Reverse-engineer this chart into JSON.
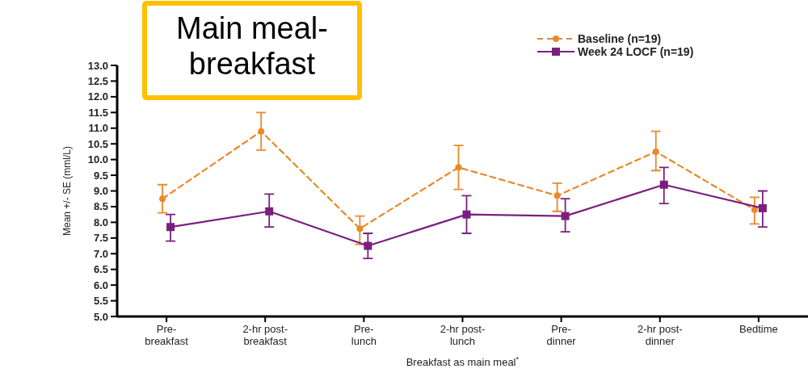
{
  "chart_data": {
    "type": "line",
    "xlabel": "Breakfast as main meal$^{*}$",
    "ylabel": "Mean +/- SE (mml/L)",
    "annotations": [
      "Main meal-\nbreakfast"
    ],
    "categories": [
      "Pre-\nbreakfast",
      "2-hr post-\nbreakfast",
      "Pre-\nlunch",
      "2-hr post-\nlunch",
      "Pre-\ndinner",
      "2-hr post-\ndinner",
      "Bedtime"
    ],
    "ylim": [
      5,
      13
    ],
    "yticks": [
      {
        "value": 5,
        "label": "5.0"
      },
      {
        "value": 5.5,
        "label": "5.5"
      },
      {
        "value": 6,
        "label": "6.0"
      },
      {
        "value": 6.5,
        "label": "6.5"
      },
      {
        "value": 7,
        "label": "7.0"
      },
      {
        "value": 7.5,
        "label": "7.5"
      },
      {
        "value": 8,
        "label": "8.0"
      },
      {
        "value": 8.5,
        "label": "8.5"
      },
      {
        "value": 9,
        "label": "9.0"
      },
      {
        "value": 9.5,
        "label": "9.5"
      },
      {
        "value": 10,
        "label": "10.0"
      },
      {
        "value": 10.5,
        "label": "10.5"
      },
      {
        "value": 11,
        "label": "11.0"
      },
      {
        "value": 11.5,
        "label": "11.5"
      },
      {
        "value": 12,
        "label": "12.0"
      },
      {
        "value": 12.5,
        "label": "12.5"
      },
      {
        "value": 13,
        "label": "13.0"
      }
    ],
    "grid": false,
    "legend": "top right",
    "series": [
      {
        "name": "Baseline (n=19)",
        "color": "#e8892b",
        "marker": "circle",
        "line_style": "dashed",
        "values": [
          8.75,
          10.9,
          7.8,
          9.75,
          8.85,
          10.25,
          8.4
        ],
        "errors": [
          [
            8.3,
            9.2
          ],
          [
            10.3,
            11.5
          ],
          [
            7.3,
            8.2
          ],
          [
            9.05,
            10.45
          ],
          [
            8.35,
            9.25
          ],
          [
            9.65,
            10.9
          ],
          [
            7.95,
            8.8
          ]
        ]
      },
      {
        "name": "Week 24 LOCF (n=19)",
        "color": "#7b1f7e",
        "marker": "square",
        "line_style": "solid",
        "values": [
          7.85,
          8.35,
          7.25,
          8.25,
          8.2,
          9.2,
          8.45
        ],
        "errors": [
          [
            7.4,
            8.25
          ],
          [
            7.85,
            8.9
          ],
          [
            6.85,
            7.65
          ],
          [
            7.65,
            8.85
          ],
          [
            7.7,
            8.75
          ],
          [
            8.6,
            9.75
          ],
          [
            7.85,
            9.0
          ]
        ]
      }
    ]
  }
}
